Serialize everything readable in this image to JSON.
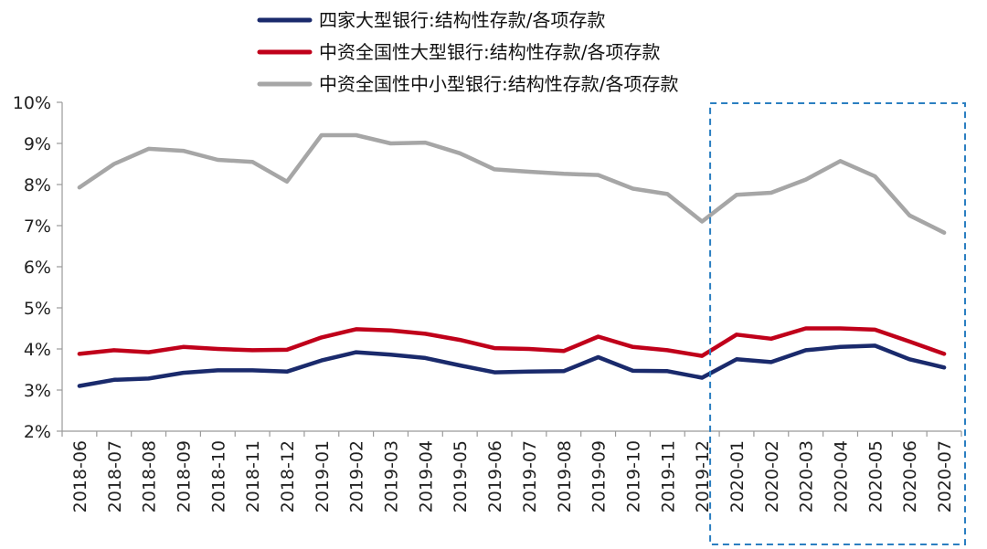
{
  "chart_data": {
    "type": "line",
    "title": "",
    "xlabel": "",
    "ylabel": "",
    "ylim": [
      2,
      10
    ],
    "y_ticks": [
      "2%",
      "3%",
      "4%",
      "5%",
      "6%",
      "7%",
      "8%",
      "9%",
      "10%"
    ],
    "grid": false,
    "legend_position": "top",
    "categories": [
      "2018-06",
      "2018-07",
      "2018-08",
      "2018-09",
      "2018-10",
      "2018-11",
      "2018-12",
      "2019-01",
      "2019-02",
      "2019-03",
      "2019-04",
      "2019-05",
      "2019-06",
      "2019-07",
      "2019-08",
      "2019-09",
      "2019-10",
      "2019-11",
      "2019-12",
      "2020-01",
      "2020-02",
      "2020-03",
      "2020-04",
      "2020-05",
      "2020-06",
      "2020-07"
    ],
    "series": [
      {
        "name": "四家大型银行:结构性存款/各项存款",
        "color": "#1a2a6c",
        "values": [
          3.1,
          3.25,
          3.28,
          3.42,
          3.48,
          3.48,
          3.45,
          3.72,
          3.92,
          3.86,
          3.78,
          3.6,
          3.43,
          3.45,
          3.46,
          3.8,
          3.47,
          3.46,
          3.3,
          3.75,
          3.68,
          3.97,
          4.05,
          4.08,
          3.75,
          3.55
        ]
      },
      {
        "name": "中资全国性大型银行:结构性存款/各项存款",
        "color": "#c0001a",
        "values": [
          3.88,
          3.97,
          3.92,
          4.05,
          4.0,
          3.97,
          3.98,
          4.28,
          4.48,
          4.45,
          4.37,
          4.22,
          4.02,
          4.0,
          3.95,
          4.3,
          4.05,
          3.97,
          3.83,
          4.35,
          4.25,
          4.5,
          4.5,
          4.47,
          4.18,
          3.88
        ]
      },
      {
        "name": "中资全国性中小型银行:结构性存款/各项存款",
        "color": "#a6a6a6",
        "values": [
          7.93,
          8.5,
          8.87,
          8.82,
          8.6,
          8.55,
          8.07,
          9.2,
          9.2,
          9.0,
          9.02,
          8.76,
          8.37,
          8.31,
          8.26,
          8.23,
          7.9,
          7.77,
          7.1,
          7.75,
          7.8,
          8.12,
          8.57,
          8.2,
          7.25,
          6.83
        ]
      }
    ],
    "highlight": {
      "from": "2020-01",
      "to": "2020-07",
      "style": "dashed-box",
      "color": "#2b7fc1"
    }
  }
}
